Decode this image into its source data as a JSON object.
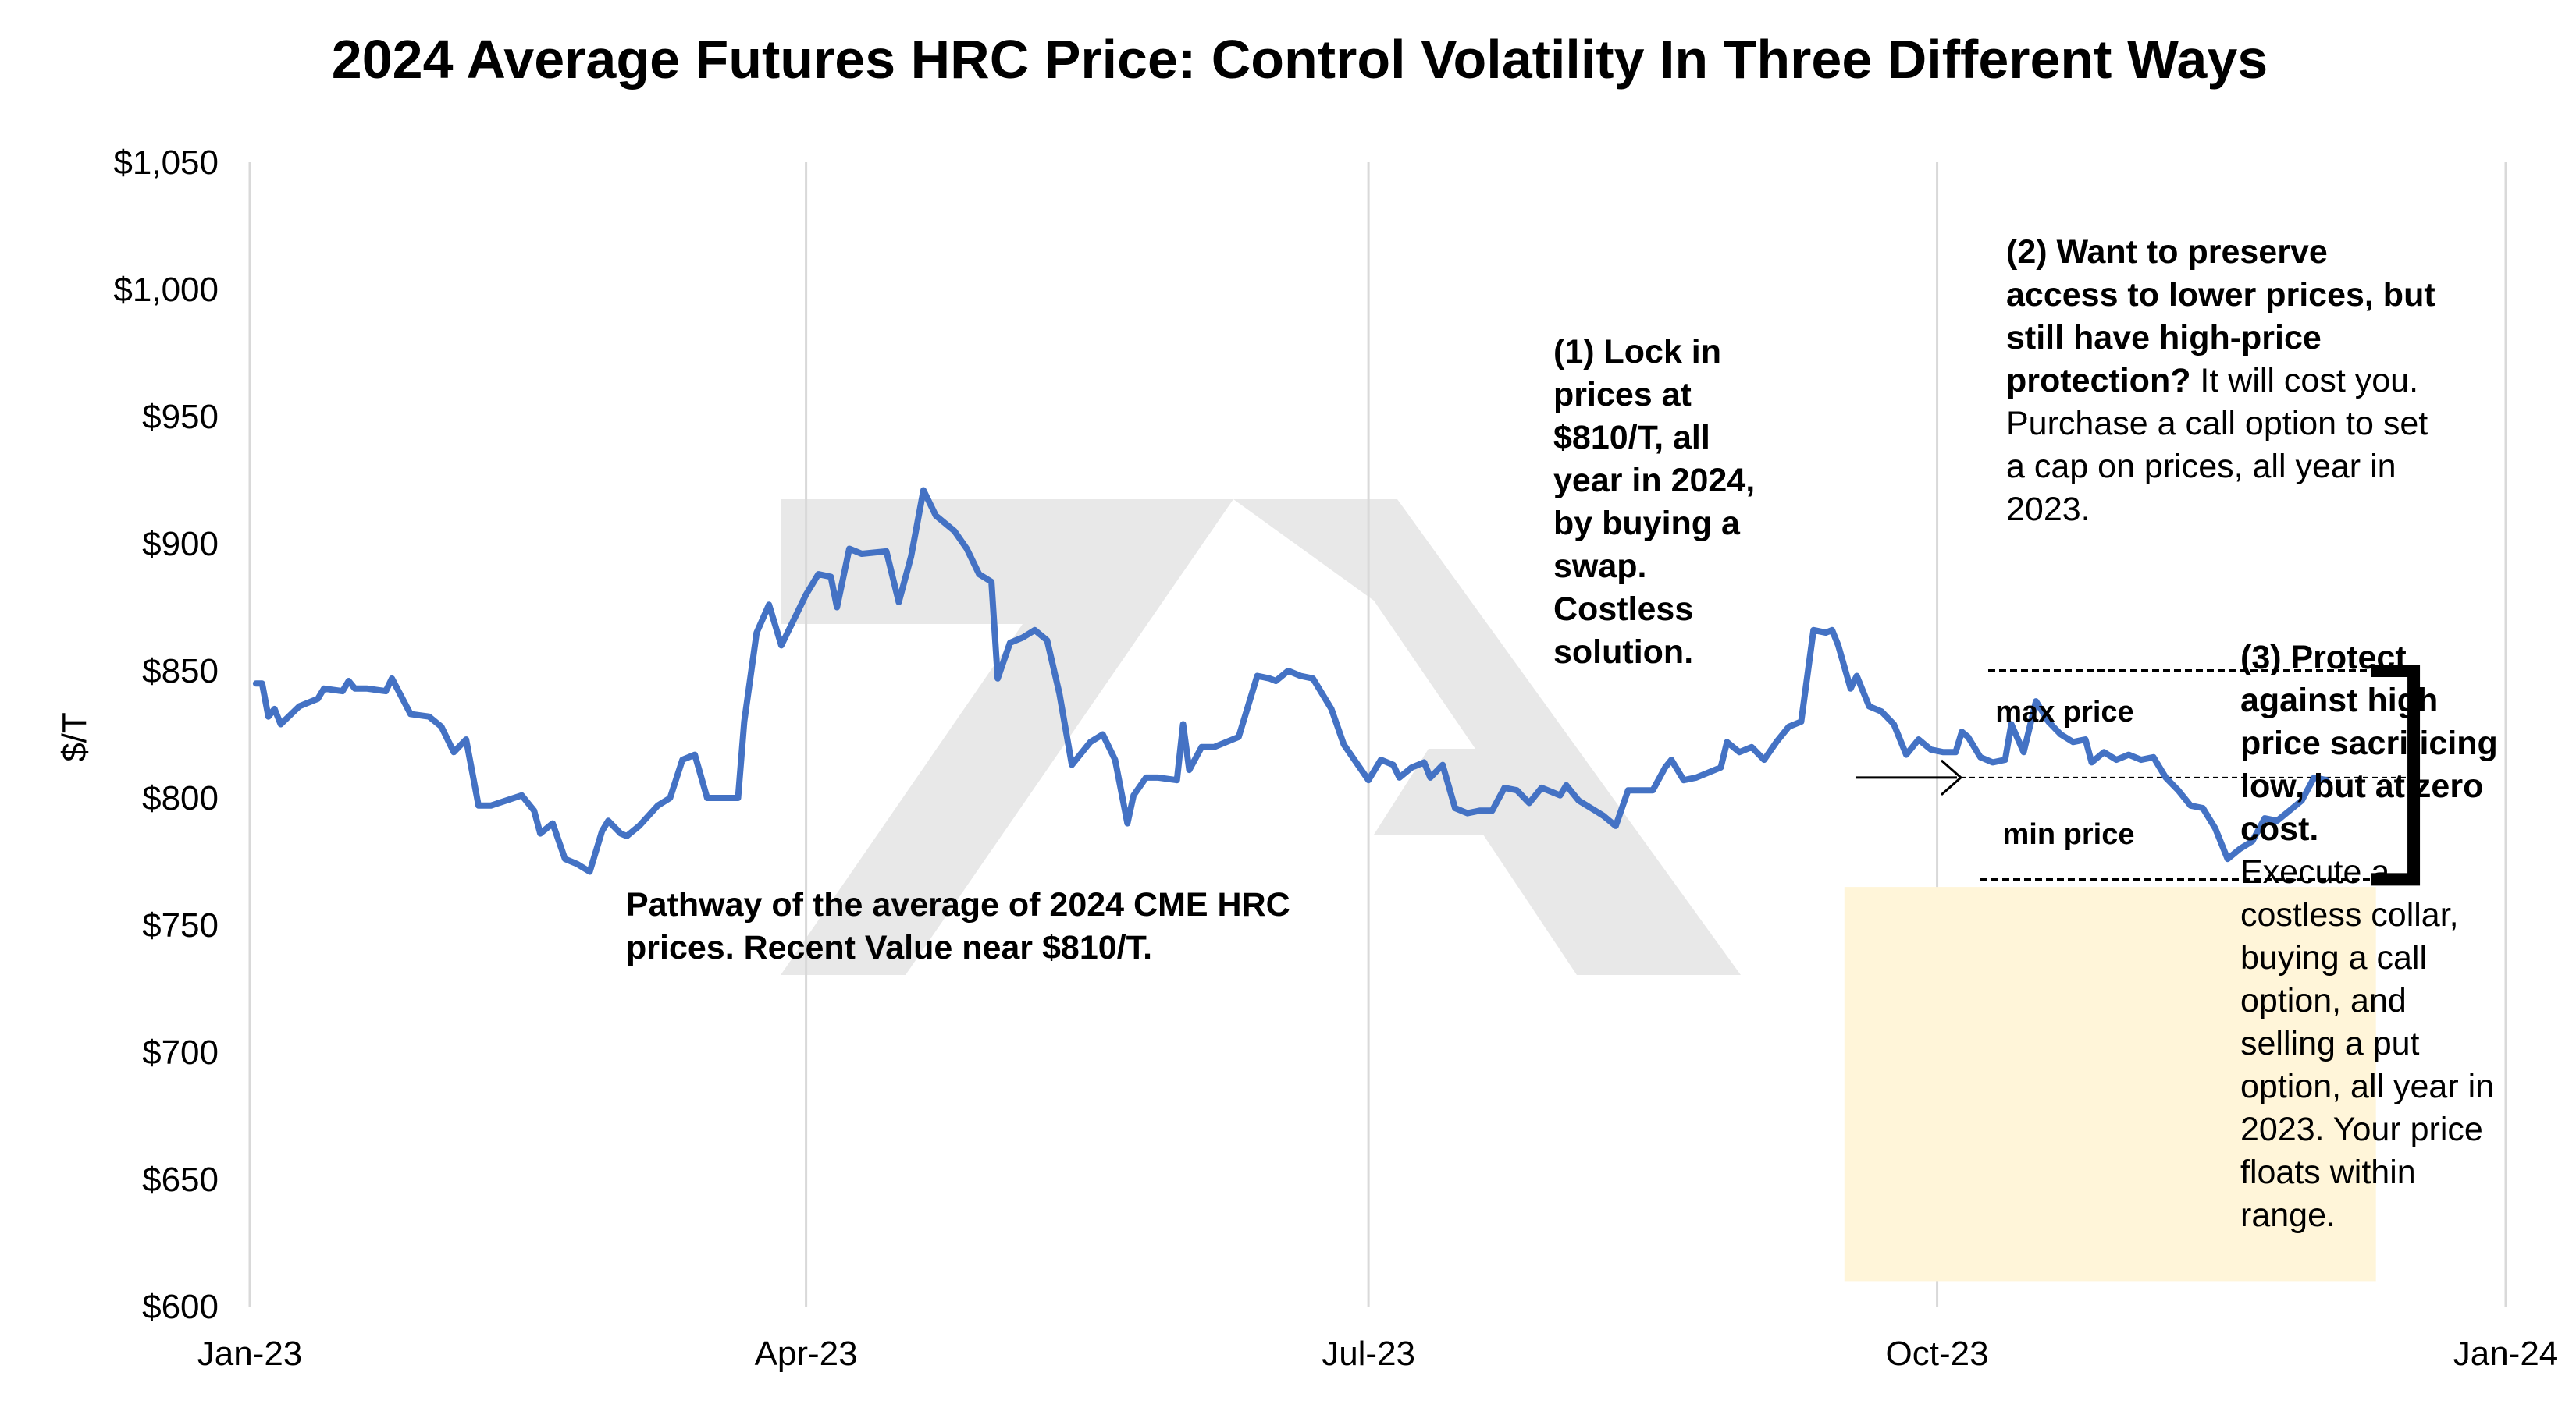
{
  "chart_data": {
    "type": "line",
    "title": "2024 Average Futures HRC Price: Control Volatility In Three Different Ways",
    "xlabel": "",
    "ylabel": "$/T",
    "ylim": [
      600,
      1050
    ],
    "y_ticks": [
      "$600",
      "$650",
      "$700",
      "$750",
      "$800",
      "$850",
      "$900",
      "$950",
      "$1,000",
      "$1,050"
    ],
    "y_tick_values": [
      600,
      650,
      700,
      750,
      800,
      850,
      900,
      950,
      1000,
      1050
    ],
    "x_ticks": [
      "Jan-23",
      "Apr-23",
      "Jul-23",
      "Oct-23",
      "Jan-24"
    ],
    "x_tick_dates": [
      "2023-01-01",
      "2023-04-01",
      "2023-07-01",
      "2023-10-01",
      "2024-01-01"
    ],
    "xlim": [
      "2023-01-01",
      "2024-01-01"
    ],
    "grid": "vertical",
    "series": [
      {
        "color": "#4472C4",
        "points": [
          [
            "2023-01-02",
            845
          ],
          [
            "2023-01-03",
            845
          ],
          [
            "2023-01-04",
            832
          ],
          [
            "2023-01-05",
            835
          ],
          [
            "2023-01-06",
            829
          ],
          [
            "2023-01-09",
            836
          ],
          [
            "2023-01-11",
            838
          ],
          [
            "2023-01-12",
            839
          ],
          [
            "2023-01-13",
            843
          ],
          [
            "2023-01-16",
            842
          ],
          [
            "2023-01-17",
            846
          ],
          [
            "2023-01-18",
            843
          ],
          [
            "2023-01-20",
            843
          ],
          [
            "2023-01-23",
            842
          ],
          [
            "2023-01-24",
            847
          ],
          [
            "2023-01-27",
            833
          ],
          [
            "2023-01-30",
            832
          ],
          [
            "2023-02-01",
            828
          ],
          [
            "2023-02-03",
            818
          ],
          [
            "2023-02-05",
            823
          ],
          [
            "2023-02-07",
            797
          ],
          [
            "2023-02-09",
            797
          ],
          [
            "2023-02-14",
            801
          ],
          [
            "2023-02-16",
            795
          ],
          [
            "2023-02-17",
            786
          ],
          [
            "2023-02-19",
            790
          ],
          [
            "2023-02-21",
            776
          ],
          [
            "2023-02-23",
            774
          ],
          [
            "2023-02-25",
            771
          ],
          [
            "2023-02-27",
            787
          ],
          [
            "2023-02-28",
            791
          ],
          [
            "2023-03-02",
            786
          ],
          [
            "2023-03-03",
            785
          ],
          [
            "2023-03-05",
            789
          ],
          [
            "2023-03-08",
            797
          ],
          [
            "2023-03-10",
            800
          ],
          [
            "2023-03-12",
            815
          ],
          [
            "2023-03-14",
            817
          ],
          [
            "2023-03-16",
            800
          ],
          [
            "2023-03-21",
            800
          ],
          [
            "2023-03-22",
            830
          ],
          [
            "2023-03-24",
            865
          ],
          [
            "2023-03-26",
            876
          ],
          [
            "2023-03-28",
            860
          ],
          [
            "2023-03-30",
            870
          ],
          [
            "2023-04-01",
            880
          ],
          [
            "2023-04-03",
            888
          ],
          [
            "2023-04-05",
            887
          ],
          [
            "2023-04-06",
            875
          ],
          [
            "2023-04-08",
            898
          ],
          [
            "2023-04-10",
            896
          ],
          [
            "2023-04-14",
            897
          ],
          [
            "2023-04-16",
            877
          ],
          [
            "2023-04-18",
            895
          ],
          [
            "2023-04-20",
            921
          ],
          [
            "2023-04-22",
            911
          ],
          [
            "2023-04-25",
            905
          ],
          [
            "2023-04-27",
            898
          ],
          [
            "2023-04-29",
            888
          ],
          [
            "2023-05-01",
            885
          ],
          [
            "2023-05-02",
            847
          ],
          [
            "2023-05-04",
            861
          ],
          [
            "2023-05-06",
            863
          ],
          [
            "2023-05-08",
            866
          ],
          [
            "2023-05-10",
            862
          ],
          [
            "2023-05-12",
            841
          ],
          [
            "2023-05-14",
            813
          ],
          [
            "2023-05-17",
            822
          ],
          [
            "2023-05-19",
            825
          ],
          [
            "2023-05-21",
            815
          ],
          [
            "2023-05-23",
            790
          ],
          [
            "2023-05-24",
            801
          ],
          [
            "2023-05-26",
            808
          ],
          [
            "2023-05-28",
            808
          ],
          [
            "2023-05-31",
            807
          ],
          [
            "2023-06-01",
            829
          ],
          [
            "2023-06-02",
            811
          ],
          [
            "2023-06-04",
            820
          ],
          [
            "2023-06-06",
            820
          ],
          [
            "2023-06-08",
            822
          ],
          [
            "2023-06-10",
            824
          ],
          [
            "2023-06-13",
            848
          ],
          [
            "2023-06-15",
            847
          ],
          [
            "2023-06-16",
            846
          ],
          [
            "2023-06-18",
            850
          ],
          [
            "2023-06-20",
            848
          ],
          [
            "2023-06-22",
            847
          ],
          [
            "2023-06-25",
            835
          ],
          [
            "2023-06-27",
            821
          ],
          [
            "2023-06-29",
            814
          ],
          [
            "2023-07-01",
            807
          ],
          [
            "2023-07-03",
            815
          ],
          [
            "2023-07-05",
            813
          ],
          [
            "2023-07-06",
            808
          ],
          [
            "2023-07-08",
            812
          ],
          [
            "2023-07-10",
            814
          ],
          [
            "2023-07-11",
            808
          ],
          [
            "2023-07-13",
            813
          ],
          [
            "2023-07-15",
            796
          ],
          [
            "2023-07-17",
            794
          ],
          [
            "2023-07-19",
            795
          ],
          [
            "2023-07-21",
            795
          ],
          [
            "2023-07-23",
            804
          ],
          [
            "2023-07-25",
            803
          ],
          [
            "2023-07-27",
            798
          ],
          [
            "2023-07-29",
            804
          ],
          [
            "2023-08-01",
            801
          ],
          [
            "2023-08-02",
            805
          ],
          [
            "2023-08-04",
            799
          ],
          [
            "2023-08-06",
            796
          ],
          [
            "2023-08-08",
            793
          ],
          [
            "2023-08-10",
            789
          ],
          [
            "2023-08-12",
            803
          ],
          [
            "2023-08-14",
            803
          ],
          [
            "2023-08-16",
            803
          ],
          [
            "2023-08-18",
            812
          ],
          [
            "2023-08-19",
            815
          ],
          [
            "2023-08-21",
            807
          ],
          [
            "2023-08-23",
            808
          ],
          [
            "2023-08-25",
            810
          ],
          [
            "2023-08-27",
            812
          ],
          [
            "2023-08-28",
            822
          ],
          [
            "2023-08-30",
            818
          ],
          [
            "2023-09-01",
            820
          ],
          [
            "2023-09-03",
            815
          ],
          [
            "2023-09-05",
            822
          ],
          [
            "2023-09-07",
            828
          ],
          [
            "2023-09-09",
            830
          ],
          [
            "2023-09-11",
            866
          ],
          [
            "2023-09-13",
            865
          ],
          [
            "2023-09-14",
            866
          ],
          [
            "2023-09-15",
            860
          ],
          [
            "2023-09-17",
            843
          ],
          [
            "2023-09-18",
            848
          ],
          [
            "2023-09-20",
            836
          ],
          [
            "2023-09-22",
            834
          ],
          [
            "2023-09-24",
            829
          ],
          [
            "2023-09-26",
            817
          ],
          [
            "2023-09-28",
            823
          ],
          [
            "2023-09-30",
            819
          ],
          [
            "2023-10-02",
            818
          ],
          [
            "2023-10-04",
            818
          ],
          [
            "2023-10-05",
            826
          ],
          [
            "2023-10-06",
            824
          ],
          [
            "2023-10-08",
            816
          ],
          [
            "2023-10-10",
            814
          ],
          [
            "2023-10-12",
            815
          ],
          [
            "2023-10-13",
            829
          ],
          [
            "2023-10-15",
            818
          ],
          [
            "2023-10-17",
            838
          ],
          [
            "2023-10-19",
            830
          ],
          [
            "2023-10-21",
            825
          ],
          [
            "2023-10-23",
            822
          ],
          [
            "2023-10-25",
            823
          ],
          [
            "2023-10-26",
            814
          ],
          [
            "2023-10-28",
            818
          ],
          [
            "2023-10-30",
            815
          ],
          [
            "2023-11-01",
            817
          ],
          [
            "2023-11-03",
            815
          ],
          [
            "2023-11-05",
            816
          ],
          [
            "2023-11-07",
            808
          ],
          [
            "2023-11-09",
            803
          ],
          [
            "2023-11-11",
            797
          ],
          [
            "2023-11-13",
            796
          ],
          [
            "2023-11-15",
            788
          ],
          [
            "2023-11-17",
            776
          ],
          [
            "2023-11-19",
            780
          ],
          [
            "2023-11-21",
            783
          ],
          [
            "2023-11-23",
            792
          ],
          [
            "2023-11-25",
            791
          ],
          [
            "2023-11-27",
            795
          ],
          [
            "2023-11-29",
            799
          ],
          [
            "2023-12-01",
            808
          ],
          [
            "2023-12-03",
            807
          ]
        ]
      }
    ],
    "reference_lines": {
      "max_price": 850,
      "min_price": 768,
      "current": 808,
      "x_start": "2023-10-08",
      "x_end": "2023-12-19"
    },
    "shaded_region": {
      "x_start": "2023-09-16",
      "x_end": "2023-12-11",
      "y_low": 610,
      "y_high": 765,
      "color": "#FFF5D9"
    }
  },
  "annotations": {
    "swap_bold": "(1) Lock in prices at $810/T, all year in 2024, by buying a swap. Costless solution.",
    "call_bold": "(2) Want to preserve access to lower prices, but still have high-price protection?",
    "call_rest": " It will cost you. Purchase a call option to set a cap on prices, all year in 2023.",
    "collar_bold": "(3) Protect against high price sacrificing low, but at zero cost.",
    "collar_rest": "Execute a costless collar, buying a call option, and selling a put option, all year in 2023.  Your price floats within range.",
    "pathway": "Pathway of the average of 2024 CME HRC prices.  Recent Value near $810/T.",
    "max_price_label": "max price",
    "min_price_label": "min price"
  },
  "colors": {
    "line": "#4472C4",
    "grid": "#D9D9D9",
    "watermark": "#E8E8E8",
    "shade": "#FFF5D9"
  }
}
